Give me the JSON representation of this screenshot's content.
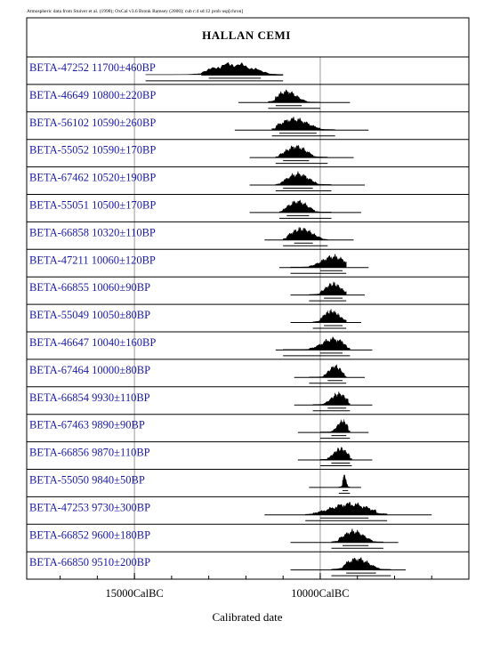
{
  "header_note": "Atmospheric data from Stuiver et al. (1998); OxCal v3.6 Bronk Ramsey (2000); cub r:4 sd:12 prob usp[chron]",
  "chart_data": {
    "type": "multiple-probability-distribution",
    "title": "HALLAN CEMI",
    "xlabel": "Calibrated date",
    "x_unit": "years BC",
    "x_tick_labels": [
      {
        "value": 15000,
        "label": "15000CalBC"
      },
      {
        "value": 10000,
        "label": "10000CalBC"
      }
    ],
    "x_minor_ticks": [
      17000,
      16000,
      15000,
      14000,
      13000,
      12000,
      11000,
      10000,
      9000,
      8000,
      7000
    ],
    "xlim": [
      17900,
      6000
    ],
    "grid": "vertical line at 10000CalBC",
    "samples": [
      {
        "label": "BETA-47252  11700±460BP",
        "peak": 12350,
        "from": 13200,
        "to": 11400,
        "tail_from": 14700,
        "tail_to": 11000,
        "range_from": 13200,
        "range_to": 11000,
        "sigma1_from": 13000,
        "sigma1_to": 11600
      },
      {
        "label": "BETA-46649  10800±220BP",
        "peak": 10900,
        "from": 11200,
        "to": 10350,
        "tail_from": 11400,
        "tail_to": 10000,
        "range_from": 12200,
        "range_to": 9200,
        "sigma1_from": 11200,
        "sigma1_to": 10500
      },
      {
        "label": "BETA-56102  10590±260BP",
        "peak": 10700,
        "from": 11200,
        "to": 10000,
        "tail_from": 11300,
        "tail_to": 9600,
        "range_from": 12300,
        "range_to": 8700,
        "sigma1_from": 11100,
        "sigma1_to": 10100
      },
      {
        "label": "BETA-55052  10590±170BP",
        "peak": 10650,
        "from": 11100,
        "to": 10200,
        "tail_from": 11200,
        "tail_to": 9800,
        "range_from": 11900,
        "range_to": 9100,
        "sigma1_from": 11000,
        "sigma1_to": 10300
      },
      {
        "label": "BETA-67462  10520±190BP",
        "peak": 10600,
        "from": 11050,
        "to": 10100,
        "tail_from": 11200,
        "tail_to": 9700,
        "range_from": 11900,
        "range_to": 8800,
        "sigma1_from": 11000,
        "sigma1_to": 10200
      },
      {
        "label": "BETA-55051  10500±170BP",
        "peak": 10600,
        "from": 11000,
        "to": 10150,
        "tail_from": 11100,
        "tail_to": 9700,
        "range_from": 11900,
        "range_to": 8900,
        "sigma1_from": 10900,
        "sigma1_to": 10300
      },
      {
        "label": "BETA-66858  10320±110BP",
        "peak": 10500,
        "from": 10900,
        "to": 9950,
        "tail_from": 11000,
        "tail_to": 9800,
        "range_from": 11500,
        "range_to": 9100,
        "sigma1_from": 10700,
        "sigma1_to": 10200
      },
      {
        "label": "BETA-47211  10060±120BP",
        "peak": 9650,
        "from": 10300,
        "to": 9300,
        "tail_from": 10800,
        "tail_to": 9300,
        "range_from": 11100,
        "range_to": 8700,
        "sigma1_from": 10000,
        "sigma1_to": 9400
      },
      {
        "label": "BETA-66855  10060±90BP",
        "peak": 9650,
        "from": 10000,
        "to": 9300,
        "tail_from": 10300,
        "tail_to": 9300,
        "range_from": 10800,
        "range_to": 8800,
        "sigma1_from": 9900,
        "sigma1_to": 9400
      },
      {
        "label": "BETA-55049  10050±80BP",
        "peak": 9700,
        "from": 10000,
        "to": 9300,
        "tail_from": 10200,
        "tail_to": 9300,
        "range_from": 10800,
        "range_to": 8900,
        "sigma1_from": 9900,
        "sigma1_to": 9400
      },
      {
        "label": "BETA-46647  10040±160BP",
        "peak": 9650,
        "from": 10300,
        "to": 9300,
        "tail_from": 11000,
        "tail_to": 9200,
        "range_from": 11200,
        "range_to": 8600,
        "sigma1_from": 10000,
        "sigma1_to": 9400
      },
      {
        "label": "BETA-67464  10000±80BP",
        "peak": 9600,
        "from": 9900,
        "to": 9350,
        "tail_from": 10300,
        "tail_to": 9300,
        "range_from": 10700,
        "range_to": 8800,
        "sigma1_from": 9800,
        "sigma1_to": 9400
      },
      {
        "label": "BETA-66854  9930±110BP",
        "peak": 9500,
        "from": 9900,
        "to": 9250,
        "tail_from": 10200,
        "tail_to": 9200,
        "range_from": 10700,
        "range_to": 8600,
        "sigma1_from": 9800,
        "sigma1_to": 9300
      },
      {
        "label": "BETA-67463  9890±90BP",
        "peak": 9400,
        "from": 9700,
        "to": 9250,
        "tail_from": 10000,
        "tail_to": 9200,
        "range_from": 10600,
        "range_to": 8700,
        "sigma1_from": 9700,
        "sigma1_to": 9300
      },
      {
        "label": "BETA-66856  9870±110BP",
        "peak": 9450,
        "from": 9800,
        "to": 9200,
        "tail_from": 10000,
        "tail_to": 9150,
        "range_from": 10600,
        "range_to": 8600,
        "sigma1_from": 9700,
        "sigma1_to": 9200
      },
      {
        "label": "BETA-55050  9840±50BP",
        "peak": 9350,
        "from": 9400,
        "to": 9250,
        "tail_from": 9500,
        "tail_to": 9200,
        "range_from": 10300,
        "range_to": 8900,
        "sigma1_from": 9400,
        "sigma1_to": 9250
      },
      {
        "label": "BETA-47253  9730±300BP",
        "peak": 9200,
        "from": 10200,
        "to": 8500,
        "tail_from": 10400,
        "tail_to": 8200,
        "range_from": 11500,
        "range_to": 7000,
        "sigma1_from": 10000,
        "sigma1_to": 8700
      },
      {
        "label": "BETA-66852  9600±180BP",
        "peak": 9100,
        "from": 9500,
        "to": 8600,
        "tail_from": 9700,
        "tail_to": 8300,
        "range_from": 10800,
        "range_to": 7900,
        "sigma1_from": 9400,
        "sigma1_to": 8700
      },
      {
        "label": "BETA-66850  9510±200BP",
        "peak": 9000,
        "from": 9400,
        "to": 8400,
        "tail_from": 9700,
        "tail_to": 8100,
        "range_from": 10800,
        "range_to": 7700,
        "sigma1_from": 9300,
        "sigma1_to": 8500
      }
    ]
  }
}
